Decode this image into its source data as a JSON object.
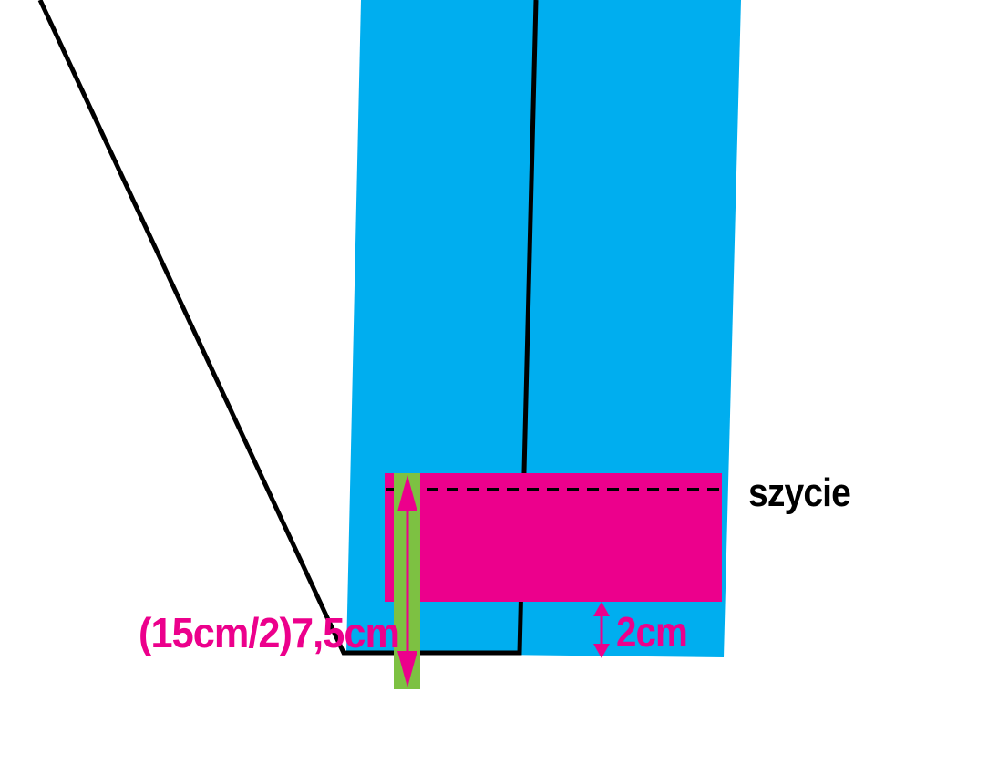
{
  "labels": {
    "seam": "szycie",
    "cuff_height": "(15cm/2)7,5cm",
    "hem_allowance": "2cm"
  },
  "colors": {
    "fabric": "#00AEEF",
    "cuff": "#EC008C",
    "measure_bar": "#7DC142",
    "outline": "#000000",
    "label_magenta": "#EC008C",
    "label_black": "#000000"
  },
  "icons": {
    "arrow": "double-headed-vertical-arrow"
  }
}
